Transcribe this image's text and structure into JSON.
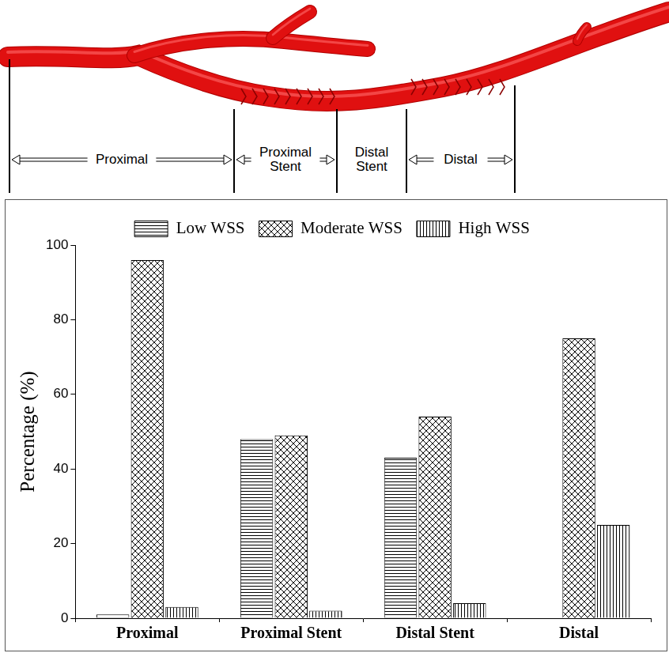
{
  "chart_data": {
    "type": "bar",
    "annotations": [
      "Proximal",
      "Proximal Stent",
      "Distal Stent",
      "Distal"
    ],
    "categories": [
      "Proximal",
      "Proximal Stent",
      "Distal Stent",
      "Distal"
    ],
    "series": [
      {
        "name": "Low WSS",
        "color": "#000000",
        "values": [
          1,
          48,
          43,
          0
        ]
      },
      {
        "name": "Moderate WSS",
        "color": "#000000",
        "values": [
          96,
          49,
          54,
          75
        ]
      },
      {
        "name": "High WSS",
        "color": "#000000",
        "values": [
          3,
          2,
          4,
          25
        ]
      }
    ],
    "y_label": "Percentage (%)",
    "ylim": [
      0,
      100
    ],
    "yticks": [
      0,
      20,
      40,
      60,
      80,
      100
    ],
    "grid": false,
    "legend": "top"
  }
}
